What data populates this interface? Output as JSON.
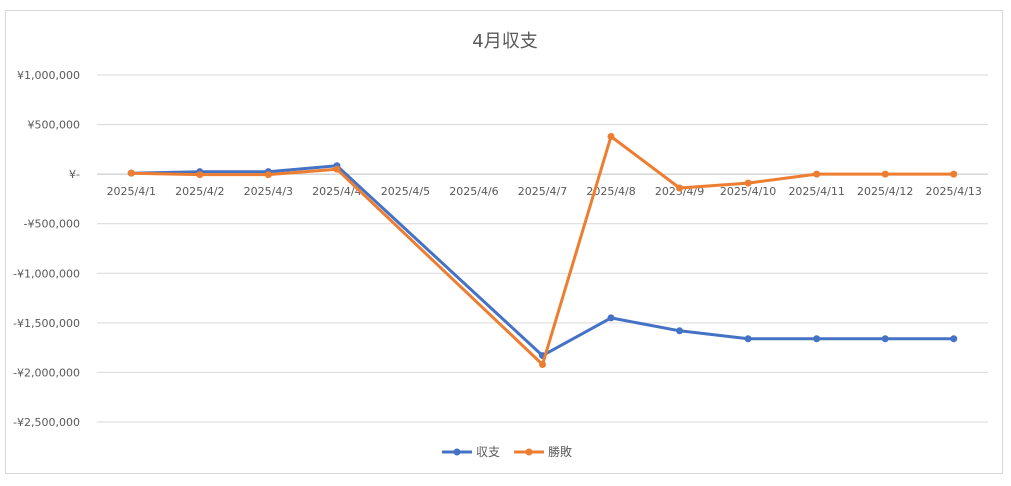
{
  "chart_data": {
    "type": "line",
    "title": "4月収支",
    "categories": [
      "2025/4/1",
      "2025/4/2",
      "2025/4/3",
      "2025/4/4",
      "2025/4/5",
      "2025/4/6",
      "2025/4/7",
      "2025/4/8",
      "2025/4/9",
      "2025/4/10",
      "2025/4/11",
      "2025/4/12",
      "2025/4/13"
    ],
    "y_ticks": [
      1000000,
      500000,
      0,
      -500000,
      -1000000,
      -1500000,
      -2000000,
      -2500000
    ],
    "y_tick_labels": [
      "¥1,000,000",
      "¥500,000",
      "¥-",
      "-¥500,000",
      "-¥1,000,000",
      "-¥1,500,000",
      "-¥2,000,000",
      "-¥2,500,000"
    ],
    "ylim": [
      -2500000,
      1000000
    ],
    "grid": true,
    "legend_position": "bottom",
    "series": [
      {
        "name": "収支",
        "color": "#4472C4",
        "points": [
          {
            "x": "2025/4/1",
            "y": 10000
          },
          {
            "x": "2025/4/2",
            "y": 25000
          },
          {
            "x": "2025/4/3",
            "y": 25000
          },
          {
            "x": "2025/4/4",
            "y": 85000
          },
          {
            "x": "2025/4/7",
            "y": -1830000
          },
          {
            "x": "2025/4/8",
            "y": -1450000
          },
          {
            "x": "2025/4/9",
            "y": -1580000
          },
          {
            "x": "2025/4/10",
            "y": -1660000
          },
          {
            "x": "2025/4/11",
            "y": -1660000
          },
          {
            "x": "2025/4/12",
            "y": -1660000
          },
          {
            "x": "2025/4/13",
            "y": -1660000
          }
        ]
      },
      {
        "name": "勝敗",
        "color": "#ED7D31",
        "points": [
          {
            "x": "2025/4/1",
            "y": 10000
          },
          {
            "x": "2025/4/2",
            "y": -5000
          },
          {
            "x": "2025/4/3",
            "y": -5000
          },
          {
            "x": "2025/4/4",
            "y": 50000
          },
          {
            "x": "2025/4/7",
            "y": -1920000
          },
          {
            "x": "2025/4/8",
            "y": 380000
          },
          {
            "x": "2025/4/9",
            "y": -140000
          },
          {
            "x": "2025/4/10",
            "y": -90000
          },
          {
            "x": "2025/4/11",
            "y": 0
          },
          {
            "x": "2025/4/12",
            "y": 0
          },
          {
            "x": "2025/4/13",
            "y": 0
          }
        ]
      }
    ]
  }
}
